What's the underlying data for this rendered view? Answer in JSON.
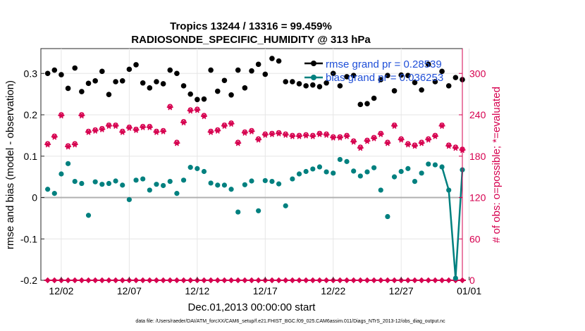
{
  "chart_data": {
    "type": "scatter",
    "title_line1": "Tropics 13244 / 13316 = 99.459%",
    "title_line2": "RADIOSONDE_SPECIFIC_HUMIDITY @ 313 hPa",
    "xlabel": "Dec.01,2013 00:00:00 start",
    "ylabel_left": "rmse and bias (model - observation)",
    "ylabel_right": "# of obs: o=possible; *=evaluated",
    "footnote": "data file: /Users/raeder/DAI/ATM_forcXX/CAM6_setup/f.e21.FHIST_BGC.f09_025.CAM6assim.011/Diags_NTrS_2013-12/obs_diag_output.nc",
    "xlim": [
      0.5,
      31.5
    ],
    "ylim_left": [
      -0.2,
      0.36
    ],
    "ylim_right": [
      0,
      336
    ],
    "x_ticks": [
      {
        "x": 2,
        "label": "12/02"
      },
      {
        "x": 7,
        "label": "12/07"
      },
      {
        "x": 12,
        "label": "12/12"
      },
      {
        "x": 17,
        "label": "12/17"
      },
      {
        "x": 22,
        "label": "12/22"
      },
      {
        "x": 27,
        "label": "12/27"
      },
      {
        "x": 32,
        "label": "01/01"
      }
    ],
    "y_ticks_left": [
      {
        "v": -0.2,
        "label": "-0.2"
      },
      {
        "v": -0.1,
        "label": "-0.1"
      },
      {
        "v": 0,
        "label": "0"
      },
      {
        "v": 0.1,
        "label": "0.1"
      },
      {
        "v": 0.2,
        "label": "0.2"
      },
      {
        "v": 0.3,
        "label": "0.3"
      }
    ],
    "y_ticks_right": [
      {
        "v": 0,
        "label": "0"
      },
      {
        "v": 60,
        "label": "60"
      },
      {
        "v": 120,
        "label": "120"
      },
      {
        "v": 180,
        "label": "180"
      },
      {
        "v": 240,
        "label": "240"
      },
      {
        "v": 300,
        "label": "300"
      }
    ],
    "legend": {
      "placement": "top-right",
      "entries": [
        {
          "label": "rmse grand pr = 0.28539",
          "color": "#000000"
        },
        {
          "label": "bias grand pr = 0.036253",
          "color": "#00807f"
        }
      ]
    },
    "colors": {
      "rmse": "#000000",
      "bias": "#00807f",
      "obs": "#d6004f",
      "zero_line": "#b0b0b0",
      "legend_text": "#1f4fd8"
    },
    "x": [
      1,
      1.5,
      2,
      2.5,
      3,
      3.5,
      4,
      4.5,
      5,
      5.5,
      6,
      6.5,
      7,
      7.5,
      8,
      8.5,
      9,
      9.5,
      10,
      10.5,
      11,
      11.5,
      12,
      12.5,
      13,
      13.5,
      14,
      14.5,
      15,
      15.5,
      16,
      16.5,
      17,
      17.5,
      18,
      18.5,
      19,
      19.5,
      20,
      20.5,
      21,
      21.5,
      22,
      22.5,
      23,
      23.5,
      24,
      24.5,
      25,
      25.5,
      26,
      26.5,
      27,
      27.5,
      28,
      28.5,
      29,
      29.5,
      30,
      30.5,
      31,
      31.5
    ],
    "series": [
      {
        "name": "rmse",
        "values": [
          0.3,
          0.308,
          0.297,
          0.264,
          0.313,
          0.256,
          0.276,
          0.282,
          0.305,
          0.249,
          0.28,
          0.282,
          0.31,
          0.321,
          0.277,
          0.265,
          0.28,
          0.275,
          0.308,
          0.3,
          0.27,
          0.25,
          0.237,
          0.238,
          0.308,
          0.257,
          0.283,
          0.248,
          0.308,
          0.265,
          0.306,
          0.322,
          0.298,
          0.336,
          0.33,
          0.28,
          0.28,
          0.275,
          0.27,
          0.272,
          0.268,
          0.277,
          0.3,
          0.27,
          0.292,
          0.295,
          0.225,
          0.227,
          0.24,
          0.285,
          0.295,
          0.258,
          0.296,
          0.295,
          0.278,
          0.26,
          0.322,
          0.28,
          0.305,
          0.27,
          0.29,
          0.285
        ]
      },
      {
        "name": "bias",
        "values": [
          0.02,
          0.01,
          0.057,
          0.082,
          0.039,
          0.034,
          -0.043,
          0.038,
          0.032,
          0.034,
          0.04,
          0.03,
          -0.005,
          0.042,
          0.045,
          0.018,
          0.032,
          0.029,
          0.039,
          0.01,
          0.042,
          0.073,
          0.07,
          0.063,
          0.035,
          0.03,
          0.03,
          0.02,
          -0.035,
          0.031,
          0.04,
          -0.032,
          0.041,
          0.039,
          0.033,
          -0.02,
          0.045,
          0.057,
          0.063,
          0.069,
          0.074,
          0.062,
          0.059,
          0.092,
          0.087,
          0.064,
          0.052,
          0.062,
          0.072,
          0.018,
          -0.046,
          0.05,
          0.063,
          0.07,
          0.039,
          0.059,
          0.081,
          0.079,
          0.074,
          0.018,
          -0.195,
          0.067
        ]
      },
      {
        "name": "obs_possible",
        "values": [
          198,
          209,
          240,
          195,
          198,
          240,
          216,
          218,
          220,
          225,
          225,
          216,
          222,
          219,
          223,
          223,
          216,
          217,
          252,
          200,
          230,
          247,
          248,
          239,
          216,
          218,
          225,
          228,
          200,
          215,
          217,
          205,
          212,
          213,
          214,
          212,
          210,
          210,
          211,
          210,
          213,
          212,
          208,
          208,
          210,
          202,
          193,
          203,
          207,
          213,
          200,
          225,
          205,
          198,
          196,
          200,
          205,
          210,
          225,
          196,
          193,
          190
        ]
      },
      {
        "name": "obs_evaluated",
        "values": [
          197,
          208,
          239,
          194,
          197,
          239,
          215,
          217,
          219,
          224,
          224,
          215,
          221,
          218,
          222,
          222,
          215,
          216,
          251,
          199,
          229,
          246,
          247,
          238,
          215,
          217,
          224,
          227,
          199,
          214,
          216,
          204,
          211,
          212,
          213,
          211,
          209,
          209,
          210,
          209,
          212,
          211,
          207,
          207,
          209,
          201,
          192,
          202,
          206,
          212,
          199,
          224,
          204,
          197,
          195,
          199,
          204,
          209,
          224,
          195,
          192,
          189
        ]
      },
      {
        "name": "obs_zero_row",
        "values": [
          0,
          0,
          0,
          0,
          0,
          0,
          0,
          0,
          0,
          0,
          0,
          0,
          0,
          0,
          0,
          0,
          0,
          0,
          0,
          0,
          0,
          0,
          0,
          0,
          0,
          0,
          0,
          0,
          0,
          0,
          0,
          0,
          0,
          0,
          0,
          0,
          0,
          0,
          0,
          0,
          0,
          0,
          0,
          0,
          0,
          0,
          0,
          0,
          0,
          0,
          0,
          0,
          0,
          0,
          0,
          0,
          0,
          0,
          0,
          0,
          0,
          0
        ]
      }
    ]
  }
}
